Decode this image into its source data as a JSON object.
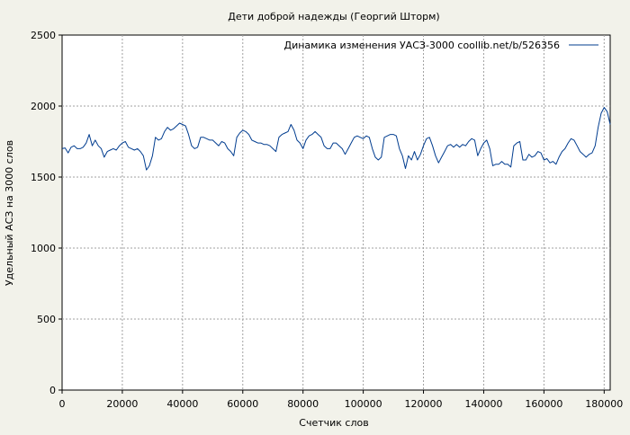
{
  "chart_data": {
    "type": "line",
    "title": "Дети доброй надежды (Георгий Шторм)",
    "xlabel": "Счетчик слов",
    "ylabel": "Удельный АСЗ на 3000 слов",
    "xlim": [
      0,
      182000
    ],
    "ylim": [
      0,
      2500
    ],
    "x_ticks": [
      0,
      20000,
      40000,
      60000,
      80000,
      100000,
      120000,
      140000,
      160000,
      180000
    ],
    "y_ticks": [
      0,
      500,
      1000,
      1500,
      2000,
      2500
    ],
    "x_tick_labels": [
      "0",
      "20000",
      "40000",
      "60000",
      "80000",
      "100000",
      "120000",
      "140000",
      "160000",
      "180000"
    ],
    "y_tick_labels": [
      "0",
      "500",
      "1000",
      "1500",
      "2000",
      "2500"
    ],
    "grid": true,
    "legend_position": "top-right",
    "colors": {
      "line": "#003c8f",
      "background": "#f2f2ea",
      "plot_bg": "#ffffff",
      "grid": "#a0a0a0"
    },
    "series": [
      {
        "name": "Динамика изменения УАСЗ-3000  coollib.net/b/526356",
        "x": [
          0,
          1000,
          2000,
          3000,
          4000,
          5000,
          6000,
          7000,
          8000,
          9000,
          10000,
          11000,
          12000,
          13000,
          14000,
          15000,
          16000,
          17000,
          18000,
          19000,
          20000,
          21000,
          22000,
          23000,
          24000,
          25000,
          26000,
          27000,
          28000,
          29000,
          30000,
          31000,
          32000,
          33000,
          34000,
          35000,
          36000,
          37000,
          38000,
          39000,
          40000,
          41000,
          42000,
          43000,
          44000,
          45000,
          46000,
          47000,
          48000,
          49000,
          50000,
          51000,
          52000,
          53000,
          54000,
          55000,
          56000,
          57000,
          58000,
          59000,
          60000,
          61000,
          62000,
          63000,
          64000,
          65000,
          66000,
          67000,
          68000,
          69000,
          70000,
          71000,
          72000,
          73000,
          74000,
          75000,
          76000,
          77000,
          78000,
          79000,
          80000,
          81000,
          82000,
          83000,
          84000,
          85000,
          86000,
          87000,
          88000,
          89000,
          90000,
          91000,
          92000,
          93000,
          94000,
          95000,
          96000,
          97000,
          98000,
          99000,
          100000,
          101000,
          102000,
          103000,
          104000,
          105000,
          106000,
          107000,
          108000,
          109000,
          110000,
          111000,
          112000,
          113000,
          114000,
          115000,
          116000,
          117000,
          118000,
          119000,
          120000,
          121000,
          122000,
          123000,
          124000,
          125000,
          126000,
          127000,
          128000,
          129000,
          130000,
          131000,
          132000,
          133000,
          134000,
          135000,
          136000,
          137000,
          138000,
          139000,
          140000,
          141000,
          142000,
          143000,
          144000,
          145000,
          146000,
          147000,
          148000,
          149000,
          150000,
          151000,
          152000,
          153000,
          154000,
          155000,
          156000,
          157000,
          158000,
          159000,
          160000,
          161000,
          162000,
          163000,
          164000,
          165000,
          166000,
          167000,
          168000,
          169000,
          170000,
          171000,
          172000,
          173000,
          174000,
          175000,
          176000,
          177000,
          178000,
          179000,
          180000,
          181000,
          182000
        ],
        "values": [
          1700,
          1705,
          1670,
          1710,
          1720,
          1700,
          1700,
          1710,
          1740,
          1800,
          1720,
          1760,
          1720,
          1700,
          1640,
          1680,
          1690,
          1700,
          1690,
          1720,
          1740,
          1750,
          1710,
          1700,
          1690,
          1700,
          1680,
          1650,
          1550,
          1580,
          1650,
          1780,
          1760,
          1770,
          1820,
          1850,
          1830,
          1840,
          1860,
          1880,
          1870,
          1860,
          1800,
          1720,
          1700,
          1710,
          1780,
          1780,
          1770,
          1760,
          1760,
          1740,
          1720,
          1750,
          1740,
          1700,
          1680,
          1650,
          1780,
          1810,
          1830,
          1820,
          1800,
          1760,
          1750,
          1740,
          1740,
          1730,
          1730,
          1720,
          1700,
          1680,
          1780,
          1800,
          1810,
          1820,
          1870,
          1830,
          1760,
          1740,
          1700,
          1760,
          1790,
          1800,
          1820,
          1800,
          1780,
          1720,
          1700,
          1700,
          1740,
          1740,
          1720,
          1700,
          1660,
          1700,
          1740,
          1780,
          1790,
          1780,
          1770,
          1790,
          1780,
          1700,
          1640,
          1620,
          1640,
          1780,
          1790,
          1800,
          1800,
          1790,
          1700,
          1650,
          1560,
          1650,
          1620,
          1680,
          1620,
          1660,
          1720,
          1770,
          1780,
          1720,
          1650,
          1600,
          1640,
          1680,
          1720,
          1730,
          1710,
          1730,
          1710,
          1730,
          1720,
          1750,
          1770,
          1760,
          1650,
          1700,
          1740,
          1760,
          1700,
          1580,
          1590,
          1590,
          1610,
          1590,
          1590,
          1570,
          1720,
          1740,
          1750,
          1620,
          1620,
          1660,
          1640,
          1650,
          1680,
          1670,
          1620,
          1630,
          1600,
          1610,
          1590,
          1640,
          1680,
          1700,
          1740,
          1770,
          1760,
          1720,
          1680,
          1660,
          1640,
          1660,
          1670,
          1720,
          1850,
          1950,
          1990,
          1960,
          1870
        ]
      }
    ]
  }
}
